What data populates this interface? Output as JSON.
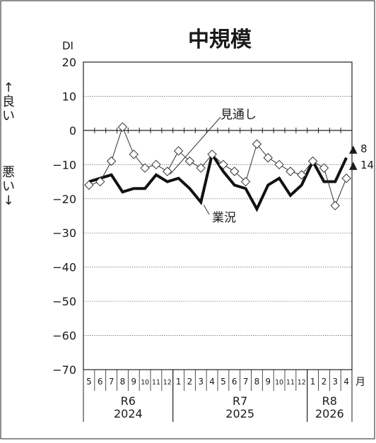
{
  "chart_data": {
    "type": "line",
    "title": "中規模",
    "ylabel": "DI",
    "ylim": [
      -70,
      20
    ],
    "yticks": [
      20,
      10,
      0,
      -10,
      -20,
      -30,
      -40,
      -50,
      -60,
      -70
    ],
    "ytick_labels": [
      "20",
      "10",
      "0",
      "−10",
      "−20",
      "−30",
      "−40",
      "−50",
      "−60",
      "−70"
    ],
    "grid": true,
    "month_unit": "月",
    "months": [
      "5",
      "6",
      "7",
      "8",
      "9",
      "10",
      "11",
      "12",
      "1",
      "2",
      "3",
      "4",
      "5",
      "6",
      "7",
      "8",
      "9",
      "10",
      "11",
      "12",
      "1",
      "2",
      "3",
      "4"
    ],
    "eras": [
      {
        "era": "R6",
        "year": "2024",
        "start": 0,
        "end": 8
      },
      {
        "era": "R7",
        "year": "2025",
        "start": 8,
        "end": 20
      },
      {
        "era": "R8",
        "year": "2026",
        "start": 20,
        "end": 24
      }
    ],
    "side_labels": {
      "good": "↑良い",
      "bad": "悪い↓"
    },
    "series": [
      {
        "name": "業況",
        "style": "thick",
        "values": [
          -15,
          -14,
          -13,
          -18,
          -17,
          -17,
          -13,
          -15,
          -14,
          -17,
          -21,
          -7,
          -12,
          -16,
          -17,
          -23,
          -16,
          -14,
          -19,
          -16,
          -9,
          -15,
          -15,
          -8
        ]
      },
      {
        "name": "見通し",
        "style": "diamond",
        "values": [
          -16,
          -15,
          -9,
          1,
          -7,
          -11,
          -10,
          -12,
          -6,
          -9,
          -11,
          -7,
          -10,
          -12,
          -15,
          -4,
          -8,
          -10,
          -12,
          -13,
          -9,
          -11,
          -22,
          -14
        ]
      }
    ],
    "annotations": [
      {
        "series": "業況",
        "marker": "▲",
        "text": "8",
        "value": -8
      },
      {
        "series": "見通し",
        "marker": "▲",
        "text": "14",
        "value": -14
      }
    ]
  }
}
